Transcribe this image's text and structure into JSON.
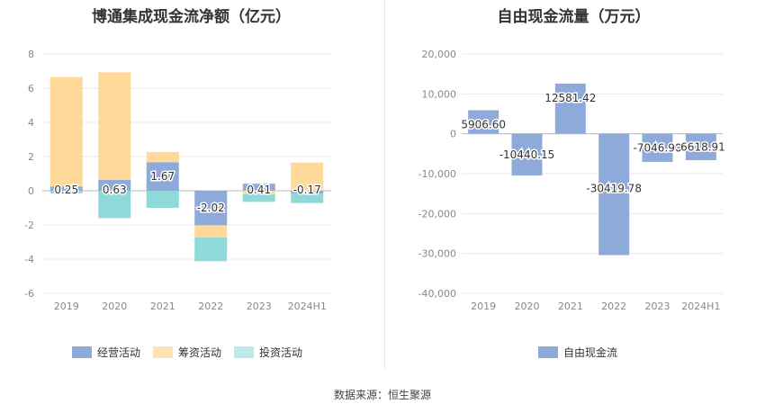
{
  "source_note": "数据来源：恒生聚源",
  "chart_data": [
    {
      "type": "bar",
      "stacked": true,
      "title": "博通集成现金流净额（亿元）",
      "categories": [
        "2019",
        "2020",
        "2021",
        "2022",
        "2023",
        "2024H1"
      ],
      "ylim": [
        -6,
        8
      ],
      "yticks": [
        -6,
        -4,
        -2,
        0,
        2,
        4,
        6,
        8
      ],
      "grid": true,
      "legend_position": "bottom",
      "series": [
        {
          "name": "经营活动",
          "color": "#8eaadb",
          "values": [
            0.25,
            0.63,
            1.67,
            -2.02,
            0.41,
            -0.17
          ]
        },
        {
          "name": "筹资活动",
          "color": "#ffd99a",
          "values": [
            6.4,
            6.3,
            0.6,
            -0.7,
            -0.2,
            1.65
          ]
        },
        {
          "name": "投资活动",
          "color": "#8fd9d9",
          "values": [
            -0.15,
            -1.6,
            -1.0,
            -1.4,
            -0.45,
            -0.55
          ]
        }
      ],
      "data_labels": [
        "0.25",
        "0.63",
        "1.67",
        "-2.02",
        "0.41",
        "-0.17"
      ]
    },
    {
      "type": "bar",
      "title": "自由现金流量（万元）",
      "categories": [
        "2019",
        "2020",
        "2021",
        "2022",
        "2023",
        "2024H1"
      ],
      "ylim": [
        -40000,
        20000
      ],
      "yticks": [
        -40000,
        -30000,
        -20000,
        -10000,
        0,
        10000,
        20000
      ],
      "ytick_labels": [
        "-40,000",
        "-30,000",
        "-20,000",
        "-10,000",
        "0",
        "10,000",
        "20,000"
      ],
      "grid": true,
      "legend_position": "bottom",
      "series": [
        {
          "name": "自由现金流",
          "color": "#8eaadb",
          "values": [
            5906.6,
            -10440.15,
            12581.42,
            -30419.78,
            -7046.9,
            -6618.91
          ]
        }
      ],
      "data_labels": [
        "5906.60",
        "-10440.15",
        "12581.42",
        "-30419.78",
        "-7046.90",
        "-6618.91"
      ]
    }
  ]
}
